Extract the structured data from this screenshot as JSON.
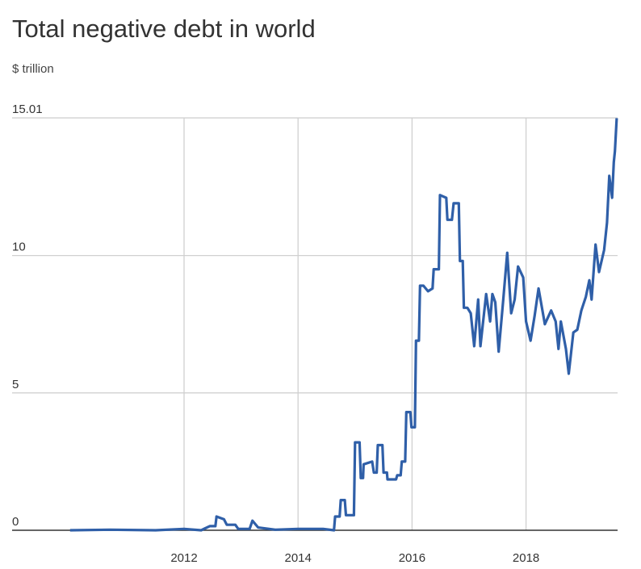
{
  "chart_data": {
    "type": "line",
    "title": "Total negative debt in world",
    "subtitle": "$ trillion",
    "xlabel": "",
    "ylabel": "$ trillion",
    "xlim": [
      2010.0,
      2019.6
    ],
    "ylim": [
      0,
      15.01
    ],
    "yticks": [
      {
        "v": 0,
        "label": "0"
      },
      {
        "v": 5,
        "label": "5"
      },
      {
        "v": 10,
        "label": "10"
      },
      {
        "v": 15.01,
        "label": "15.01"
      }
    ],
    "xticks": [
      {
        "v": 2012,
        "label": "2012"
      },
      {
        "v": 2014,
        "label": "2014"
      },
      {
        "v": 2016,
        "label": "2016"
      },
      {
        "v": 2018,
        "label": "2018"
      }
    ],
    "grid": true,
    "color": "#2f5fa8",
    "series": [
      {
        "name": "Total negative debt",
        "points": [
          [
            2010.0,
            0.0
          ],
          [
            2010.7,
            0.02
          ],
          [
            2011.5,
            0.0
          ],
          [
            2012.0,
            0.05
          ],
          [
            2012.3,
            0.0
          ],
          [
            2012.45,
            0.15
          ],
          [
            2012.55,
            0.15
          ],
          [
            2012.57,
            0.5
          ],
          [
            2012.7,
            0.4
          ],
          [
            2012.75,
            0.2
          ],
          [
            2012.9,
            0.2
          ],
          [
            2012.95,
            0.05
          ],
          [
            2013.15,
            0.05
          ],
          [
            2013.2,
            0.35
          ],
          [
            2013.3,
            0.1
          ],
          [
            2013.6,
            0.02
          ],
          [
            2014.0,
            0.05
          ],
          [
            2014.44,
            0.05
          ],
          [
            2014.63,
            0.0
          ],
          [
            2014.65,
            0.5
          ],
          [
            2014.73,
            0.5
          ],
          [
            2014.75,
            1.1
          ],
          [
            2014.82,
            1.1
          ],
          [
            2014.84,
            0.55
          ],
          [
            2014.98,
            0.55
          ],
          [
            2015.0,
            3.2
          ],
          [
            2015.08,
            3.2
          ],
          [
            2015.1,
            1.9
          ],
          [
            2015.14,
            1.9
          ],
          [
            2015.15,
            2.4
          ],
          [
            2015.3,
            2.5
          ],
          [
            2015.33,
            2.1
          ],
          [
            2015.38,
            2.1
          ],
          [
            2015.4,
            3.1
          ],
          [
            2015.48,
            3.1
          ],
          [
            2015.5,
            2.1
          ],
          [
            2015.56,
            2.1
          ],
          [
            2015.57,
            1.85
          ],
          [
            2015.72,
            1.85
          ],
          [
            2015.74,
            2.0
          ],
          [
            2015.8,
            2.0
          ],
          [
            2015.82,
            2.5
          ],
          [
            2015.88,
            2.5
          ],
          [
            2015.9,
            4.3
          ],
          [
            2015.97,
            4.3
          ],
          [
            2015.99,
            3.75
          ],
          [
            2016.05,
            3.75
          ],
          [
            2016.07,
            6.9
          ],
          [
            2016.12,
            6.9
          ],
          [
            2016.14,
            8.9
          ],
          [
            2016.2,
            8.9
          ],
          [
            2016.28,
            8.7
          ],
          [
            2016.36,
            8.8
          ],
          [
            2016.38,
            9.5
          ],
          [
            2016.47,
            9.5
          ],
          [
            2016.49,
            12.2
          ],
          [
            2016.6,
            12.1
          ],
          [
            2016.62,
            11.3
          ],
          [
            2016.7,
            11.3
          ],
          [
            2016.73,
            11.9
          ],
          [
            2016.82,
            11.9
          ],
          [
            2016.84,
            9.8
          ],
          [
            2016.89,
            9.8
          ],
          [
            2016.91,
            8.1
          ],
          [
            2016.97,
            8.1
          ],
          [
            2017.03,
            7.9
          ],
          [
            2017.09,
            6.7
          ],
          [
            2017.16,
            8.4
          ],
          [
            2017.2,
            6.7
          ],
          [
            2017.3,
            8.6
          ],
          [
            2017.37,
            7.6
          ],
          [
            2017.41,
            8.6
          ],
          [
            2017.46,
            8.3
          ],
          [
            2017.52,
            6.5
          ],
          [
            2017.6,
            8.4
          ],
          [
            2017.67,
            10.1
          ],
          [
            2017.74,
            7.9
          ],
          [
            2017.8,
            8.4
          ],
          [
            2017.86,
            9.6
          ],
          [
            2017.95,
            9.2
          ],
          [
            2018.0,
            7.6
          ],
          [
            2018.08,
            6.9
          ],
          [
            2018.15,
            7.8
          ],
          [
            2018.22,
            8.8
          ],
          [
            2018.33,
            7.5
          ],
          [
            2018.44,
            8.0
          ],
          [
            2018.52,
            7.6
          ],
          [
            2018.57,
            6.6
          ],
          [
            2018.61,
            7.6
          ],
          [
            2018.7,
            6.6
          ],
          [
            2018.75,
            5.7
          ],
          [
            2018.83,
            7.2
          ],
          [
            2018.9,
            7.3
          ],
          [
            2018.97,
            8.0
          ],
          [
            2019.05,
            8.5
          ],
          [
            2019.11,
            9.1
          ],
          [
            2019.15,
            8.4
          ],
          [
            2019.22,
            10.4
          ],
          [
            2019.28,
            9.4
          ],
          [
            2019.37,
            10.2
          ],
          [
            2019.42,
            11.2
          ],
          [
            2019.46,
            12.9
          ],
          [
            2019.51,
            12.1
          ],
          [
            2019.54,
            13.4
          ],
          [
            2019.56,
            13.8
          ],
          [
            2019.59,
            15.0
          ]
        ]
      }
    ]
  }
}
